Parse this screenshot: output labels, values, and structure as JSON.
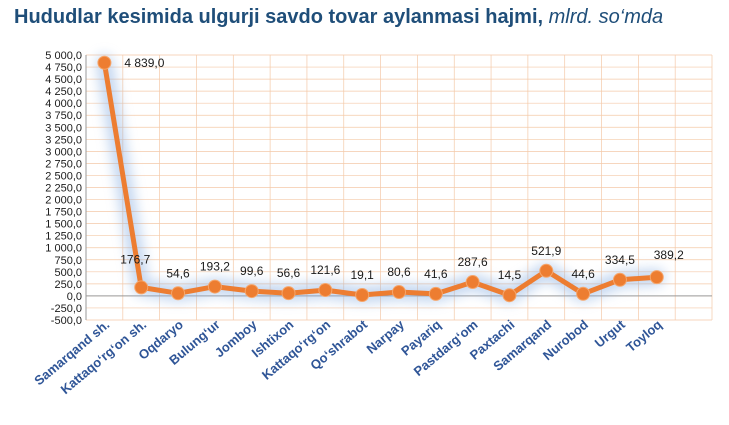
{
  "chart_data": {
    "type": "line",
    "title": "Hududlar kesimida ulgurji savdo tovar aylanmasi hajmi,",
    "unit": "mlrd. so‘mda",
    "categories": [
      "Samarqand sh.",
      "Kattaqo‘rg‘on sh.",
      "Oqdaryo",
      "Bulung‘ur",
      "Jomboy",
      "Ishtixon",
      "Kattaqo‘rg‘on",
      "Qo‘shrabot",
      "Narpay",
      "Payariq",
      "Pastdarg‘om",
      "Paxtachi",
      "Samarqand",
      "Nurobod",
      "Urgut",
      "Toyloq"
    ],
    "values": [
      4839.0,
      176.7,
      54.6,
      193.2,
      99.6,
      56.6,
      121.6,
      19.1,
      80.6,
      41.6,
      287.6,
      14.5,
      521.9,
      44.6,
      334.5,
      389.2
    ],
    "value_labels": [
      "4 839,0",
      "176,7",
      "54,6",
      "193,2",
      "99,6",
      "56,6",
      "121,6",
      "19,1",
      "80,6",
      "41,6",
      "287,6",
      "14,5",
      "521,9",
      "44,6",
      "334,5",
      "389,2"
    ],
    "ylim": [
      -500,
      5000
    ],
    "yticks": [
      -500,
      -250,
      0,
      250,
      500,
      750,
      1000,
      1250,
      1500,
      1750,
      2000,
      2250,
      2500,
      2750,
      3000,
      3250,
      3500,
      3750,
      4000,
      4250,
      4500,
      4750,
      5000
    ],
    "ytick_labels": [
      "-500,0",
      "-250,0",
      "0,0",
      "250,0",
      "500,0",
      "750,0",
      "1 000,0",
      "1 250,0",
      "1 500,0",
      "1 750,0",
      "2 000,0",
      "2 250,0",
      "2 500,0",
      "2 750,0",
      "3 000,0",
      "3 250,0",
      "3 500,0",
      "3 750,0",
      "4 000,0",
      "4 250,0",
      "4 500,0",
      "4 750,0",
      "5 000,0"
    ],
    "grid": true,
    "colors": {
      "line": "#ed7d31",
      "grid": "#f4c9a8",
      "title": "#1f4e79",
      "tick": "#2f5597",
      "glow": "#8fb3e3"
    }
  }
}
